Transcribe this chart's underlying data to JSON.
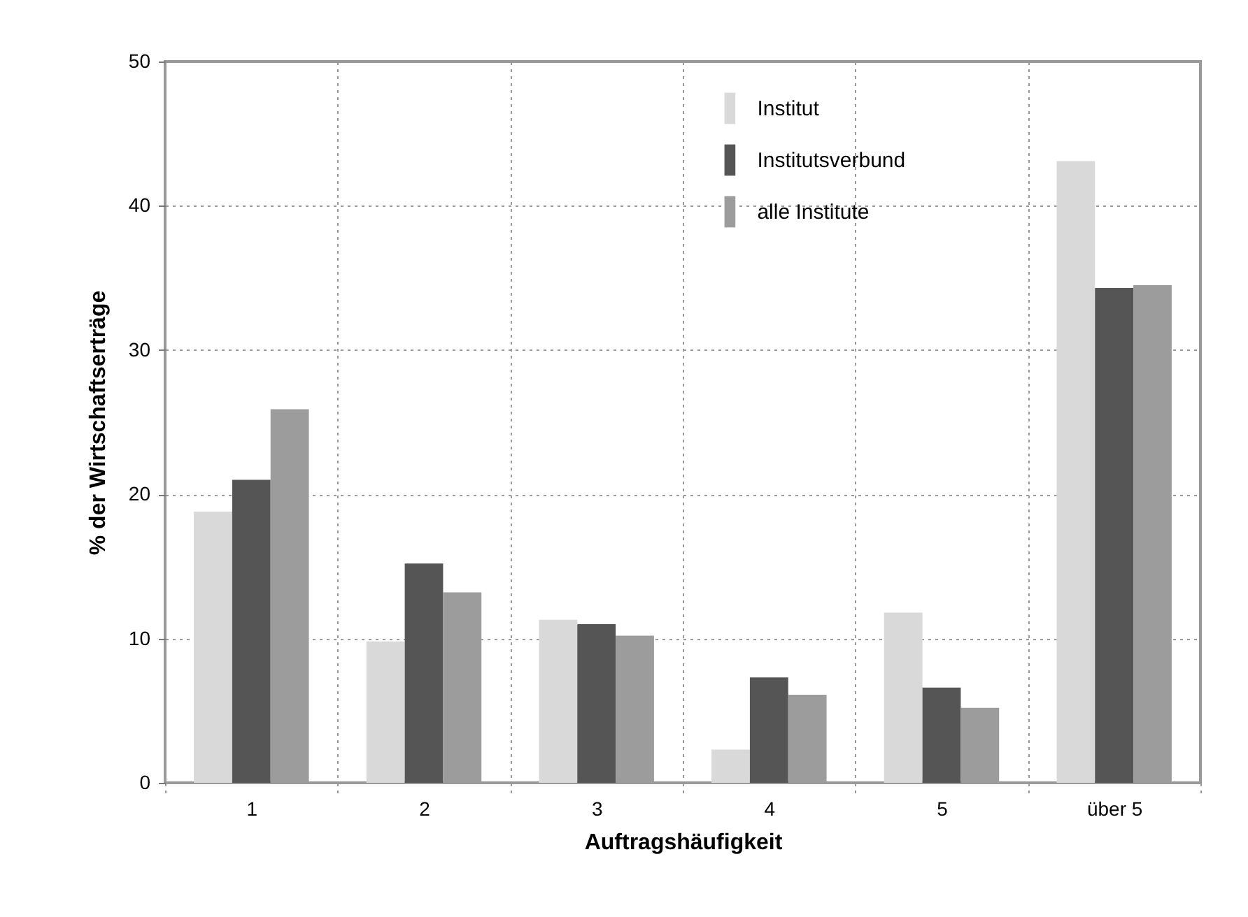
{
  "chart_data": {
    "type": "bar",
    "xlabel": "Auftragshäufigkeit",
    "ylabel": "% der Wirtschaftserträge",
    "categories": [
      "1",
      "2",
      "3",
      "4",
      "5",
      "über 5"
    ],
    "series": [
      {
        "name": "Institut",
        "color": "#d9d9d9",
        "values": [
          18.8,
          9.8,
          11.3,
          2.3,
          11.8,
          43.1
        ]
      },
      {
        "name": "Institutsverbund",
        "color": "#555555",
        "values": [
          21.0,
          15.2,
          11.0,
          7.3,
          6.6,
          34.3
        ]
      },
      {
        "name": "alle Institute",
        "color": "#9c9c9c",
        "values": [
          25.9,
          13.2,
          10.2,
          6.1,
          5.2,
          34.5
        ]
      }
    ],
    "ylim": [
      0,
      50
    ],
    "yticks": [
      0,
      10,
      20,
      30,
      40,
      50
    ],
    "grid": true,
    "legend": "top"
  }
}
